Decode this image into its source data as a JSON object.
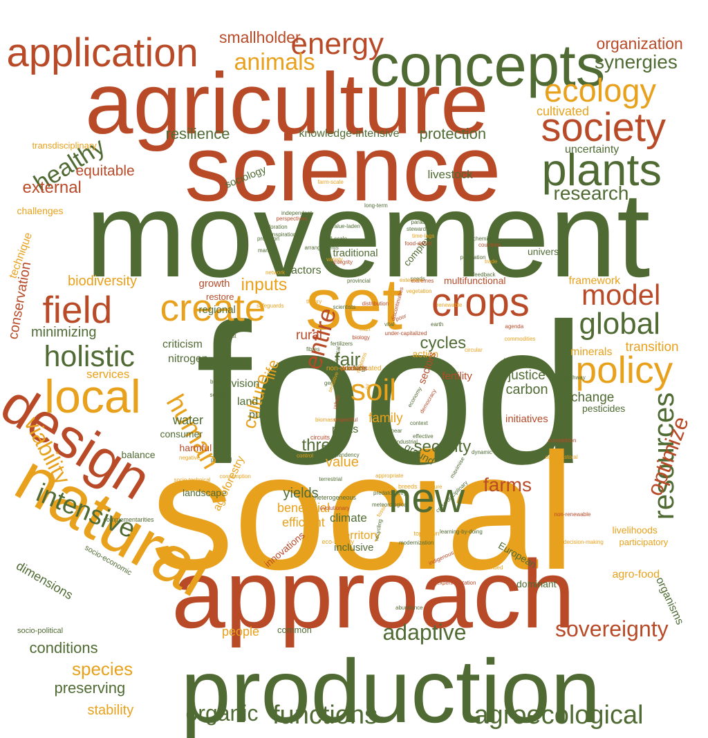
{
  "palette": {
    "olive": "#4f6a32",
    "rust": "#b84a28",
    "amber": "#e8a11c"
  },
  "words": [
    {
      "t": "food",
      "c": "olive"
    },
    {
      "t": "social",
      "c": "amber"
    },
    {
      "t": "movement",
      "c": "olive"
    },
    {
      "t": "science",
      "c": "rust"
    },
    {
      "t": "agriculture",
      "c": "rust"
    },
    {
      "t": "approach",
      "c": "rust"
    },
    {
      "t": "production",
      "c": "olive"
    },
    {
      "t": "concepts",
      "c": "olive"
    },
    {
      "t": "natural",
      "c": "amber"
    },
    {
      "t": "set",
      "c": "amber"
    },
    {
      "t": "design",
      "c": "rust"
    },
    {
      "t": "plants",
      "c": "olive"
    },
    {
      "t": "society",
      "c": "rust"
    },
    {
      "t": "local",
      "c": "amber"
    },
    {
      "t": "new",
      "c": "olive"
    },
    {
      "t": "application",
      "c": "rust"
    },
    {
      "t": "crops",
      "c": "rust"
    },
    {
      "t": "field",
      "c": "rust"
    },
    {
      "t": "create",
      "c": "amber"
    },
    {
      "t": "policy",
      "c": "amber"
    },
    {
      "t": "ecology",
      "c": "amber"
    },
    {
      "t": "energy",
      "c": "rust"
    },
    {
      "t": "soil",
      "c": "amber"
    },
    {
      "t": "global",
      "c": "olive"
    },
    {
      "t": "holistic",
      "c": "olive"
    },
    {
      "t": "model",
      "c": "rust"
    },
    {
      "t": "resources",
      "c": "olive"
    },
    {
      "t": "human",
      "c": "amber"
    },
    {
      "t": "intensive",
      "c": "olive"
    },
    {
      "t": "functions",
      "c": "olive"
    },
    {
      "t": "agroecological",
      "c": "olive"
    },
    {
      "t": "sovereignty",
      "c": "rust"
    },
    {
      "t": "adaptive",
      "c": "olive"
    },
    {
      "t": "organic",
      "c": "olive"
    },
    {
      "t": "optimize",
      "c": "rust"
    },
    {
      "t": "viability",
      "c": "amber"
    },
    {
      "t": "healthy",
      "c": "olive"
    },
    {
      "t": "animals",
      "c": "amber"
    },
    {
      "t": "synergies",
      "c": "olive"
    },
    {
      "t": "smallholder",
      "c": "rust"
    },
    {
      "t": "organization",
      "c": "rust"
    },
    {
      "t": "resilience",
      "c": "olive"
    },
    {
      "t": "protection",
      "c": "olive"
    },
    {
      "t": "knowledge-intensive",
      "c": "olive"
    },
    {
      "t": "cultivated",
      "c": "amber"
    },
    {
      "t": "external",
      "c": "rust"
    },
    {
      "t": "equitable",
      "c": "rust"
    },
    {
      "t": "research",
      "c": "olive"
    },
    {
      "t": "uncertainty",
      "c": "olive"
    },
    {
      "t": "livestock",
      "c": "olive"
    },
    {
      "t": "sociology",
      "c": "olive"
    },
    {
      "t": "transdisciplinary",
      "c": "amber"
    },
    {
      "t": "challenges",
      "c": "amber"
    },
    {
      "t": "technique",
      "c": "amber"
    },
    {
      "t": "conservation",
      "c": "rust"
    },
    {
      "t": "biodiversity",
      "c": "amber"
    },
    {
      "t": "minimizing",
      "c": "olive"
    },
    {
      "t": "inputs",
      "c": "amber"
    },
    {
      "t": "entire",
      "c": "rust"
    },
    {
      "t": "cycles",
      "c": "olive"
    },
    {
      "t": "fair",
      "c": "olive"
    },
    {
      "t": "culture",
      "c": "amber"
    },
    {
      "t": "life",
      "c": "amber"
    },
    {
      "t": "rural",
      "c": "rust"
    },
    {
      "t": "framework",
      "c": "amber"
    },
    {
      "t": "multifunctional",
      "c": "rust"
    },
    {
      "t": "transition",
      "c": "amber"
    },
    {
      "t": "minerals",
      "c": "amber"
    },
    {
      "t": "nutrients",
      "c": "olive"
    },
    {
      "t": "justice",
      "c": "olive"
    },
    {
      "t": "carbon",
      "c": "olive"
    },
    {
      "t": "change",
      "c": "olive"
    },
    {
      "t": "pesticides",
      "c": "olive"
    },
    {
      "t": "security",
      "c": "olive"
    },
    {
      "t": "value",
      "c": "amber"
    },
    {
      "t": "three",
      "c": "olive"
    },
    {
      "t": "water",
      "c": "olive"
    },
    {
      "t": "consumer",
      "c": "olive"
    },
    {
      "t": "harmful",
      "c": "rust"
    },
    {
      "t": "balance",
      "c": "olive"
    },
    {
      "t": "services",
      "c": "amber"
    },
    {
      "t": "family",
      "c": "amber"
    },
    {
      "t": "pests",
      "c": "olive"
    },
    {
      "t": "public",
      "c": "olive"
    },
    {
      "t": "land",
      "c": "olive"
    },
    {
      "t": "vision",
      "c": "olive"
    },
    {
      "t": "nitrogen",
      "c": "olive"
    },
    {
      "t": "criticism",
      "c": "olive"
    },
    {
      "t": "regional",
      "c": "olive"
    },
    {
      "t": "growth",
      "c": "rust"
    },
    {
      "t": "restore",
      "c": "rust"
    },
    {
      "t": "actors",
      "c": "olive"
    },
    {
      "t": "traditional",
      "c": "olive"
    },
    {
      "t": "universal",
      "c": "olive"
    },
    {
      "t": "complex",
      "c": "olive"
    },
    {
      "t": "fertility",
      "c": "rust"
    },
    {
      "t": "action",
      "c": "amber"
    },
    {
      "t": "sectors",
      "c": "rust"
    },
    {
      "t": "initiatives",
      "c": "rust"
    },
    {
      "t": "farms",
      "c": "rust"
    },
    {
      "t": "yields",
      "c": "olive"
    },
    {
      "t": "beneficial",
      "c": "amber"
    },
    {
      "t": "efficient",
      "c": "amber"
    },
    {
      "t": "climate",
      "c": "olive"
    },
    {
      "t": "territory",
      "c": "amber"
    },
    {
      "t": "inclusive",
      "c": "olive"
    },
    {
      "t": "innovations",
      "c": "rust"
    },
    {
      "t": "landscape",
      "c": "olive"
    },
    {
      "t": "agroforestry",
      "c": "amber"
    },
    {
      "t": "ground",
      "c": "olive"
    },
    {
      "t": "European",
      "c": "olive"
    },
    {
      "t": "dominant",
      "c": "olive"
    },
    {
      "t": "common",
      "c": "olive"
    },
    {
      "t": "people",
      "c": "amber"
    },
    {
      "t": "species",
      "c": "amber"
    },
    {
      "t": "conditions",
      "c": "olive"
    },
    {
      "t": "preserving",
      "c": "olive"
    },
    {
      "t": "stability",
      "c": "amber"
    },
    {
      "t": "socio-political",
      "c": "olive"
    },
    {
      "t": "dimensions",
      "c": "olive"
    },
    {
      "t": "socio-economic",
      "c": "olive"
    },
    {
      "t": "organisms",
      "c": "olive"
    },
    {
      "t": "participatory",
      "c": "amber"
    },
    {
      "t": "agro-food",
      "c": "amber"
    },
    {
      "t": "livelihoods",
      "c": "amber"
    },
    {
      "t": "complementarities",
      "c": "olive"
    },
    {
      "t": "experimentation",
      "c": "rust"
    },
    {
      "t": "abundance",
      "c": "olive"
    },
    {
      "t": "decision-making",
      "c": "amber"
    },
    {
      "t": "non-renewable",
      "c": "rust"
    },
    {
      "t": "indigenous",
      "c": "rust"
    },
    {
      "t": "learning-by-doing",
      "c": "olive"
    },
    {
      "t": "top-down",
      "c": "amber"
    },
    {
      "t": "modernization",
      "c": "olive"
    },
    {
      "t": "like-minded",
      "c": "amber"
    },
    {
      "t": "eco-friendly",
      "c": "amber"
    },
    {
      "t": "meteorological",
      "c": "olive"
    },
    {
      "t": "predator/prey",
      "c": "olive"
    },
    {
      "t": "fossil",
      "c": "amber"
    },
    {
      "t": "recycling",
      "c": "olive"
    },
    {
      "t": "heterogeneous",
      "c": "olive"
    },
    {
      "t": "terrestrial",
      "c": "olive"
    },
    {
      "t": "evolutionary",
      "c": "rust"
    },
    {
      "t": "appropriate",
      "c": "amber"
    },
    {
      "t": "breeds",
      "c": "amber"
    },
    {
      "t": "future",
      "c": "amber"
    },
    {
      "t": "maximise",
      "c": "olive"
    },
    {
      "t": "cross-disciplinary",
      "c": "olive"
    },
    {
      "t": "dynamic",
      "c": "olive"
    },
    {
      "t": "dependency",
      "c": "olive"
    },
    {
      "t": "control",
      "c": "amber"
    },
    {
      "t": "potential",
      "c": "olive"
    },
    {
      "t": "negative",
      "c": "amber"
    },
    {
      "t": "socio-technical",
      "c": "amber"
    },
    {
      "t": "consumption",
      "c": "amber"
    },
    {
      "t": "respectful",
      "c": "rust"
    },
    {
      "t": "industrial",
      "c": "olive"
    },
    {
      "t": "non-linear",
      "c": "olive"
    },
    {
      "t": "context",
      "c": "olive"
    },
    {
      "t": "effective",
      "c": "olive"
    },
    {
      "t": "agro-pastoral",
      "c": "amber"
    },
    {
      "t": "competition",
      "c": "rust"
    },
    {
      "t": "biomass",
      "c": "amber"
    },
    {
      "t": "urban",
      "c": "rust"
    },
    {
      "t": "circuits",
      "c": "rust"
    },
    {
      "t": "bottom",
      "c": "olive"
    },
    {
      "t": "scales",
      "c": "olive"
    },
    {
      "t": "genetic",
      "c": "olive"
    },
    {
      "t": "fibres",
      "c": "olive"
    },
    {
      "t": "insects",
      "c": "olive"
    },
    {
      "t": "biotic",
      "c": "olive"
    },
    {
      "t": "quality",
      "c": "olive"
    },
    {
      "t": "economy",
      "c": "olive"
    },
    {
      "t": "democracy",
      "c": "rust"
    },
    {
      "t": "sensitive",
      "c": "amber"
    },
    {
      "t": "circular",
      "c": "amber"
    },
    {
      "t": "pathway",
      "c": "olive"
    },
    {
      "t": "commodities",
      "c": "amber"
    },
    {
      "t": "under-capitalized",
      "c": "rust"
    },
    {
      "t": "earth",
      "c": "olive"
    },
    {
      "t": "agenda",
      "c": "rust"
    },
    {
      "t": "renewable",
      "c": "amber"
    },
    {
      "t": "fertilizers",
      "c": "olive"
    },
    {
      "t": "eat",
      "c": "olive"
    },
    {
      "t": "biophysical",
      "c": "olive"
    },
    {
      "t": "rotations",
      "c": "amber"
    },
    {
      "t": "oil",
      "c": "amber"
    },
    {
      "t": "man",
      "c": "amber"
    },
    {
      "t": "biology",
      "c": "rust"
    },
    {
      "t": "vital",
      "c": "olive"
    },
    {
      "t": "poor",
      "c": "rust"
    },
    {
      "t": "discontinuities",
      "c": "rust"
    },
    {
      "t": "scientists",
      "c": "olive"
    },
    {
      "t": "theory",
      "c": "amber"
    },
    {
      "t": "safeguards",
      "c": "amber"
    },
    {
      "t": "distribution",
      "c": "rust"
    },
    {
      "t": "seeds",
      "c": "olive"
    },
    {
      "t": "variety",
      "c": "amber"
    },
    {
      "t": "provincial",
      "c": "olive"
    },
    {
      "t": "arrangements",
      "c": "olive"
    },
    {
      "t": "markets",
      "c": "olive"
    },
    {
      "t": "small-scale",
      "c": "olive"
    },
    {
      "t": "integrity",
      "c": "rust"
    },
    {
      "t": "network",
      "c": "amber"
    },
    {
      "t": "provision",
      "c": "olive"
    },
    {
      "t": "inspiration",
      "c": "olive"
    },
    {
      "t": "exploration",
      "c": "olive"
    },
    {
      "t": "perspectives",
      "c": "rust"
    },
    {
      "t": "independent",
      "c": "olive"
    },
    {
      "t": "value-laden",
      "c": "olive"
    },
    {
      "t": "mimicking",
      "c": "olive"
    },
    {
      "t": "paradigm",
      "c": "olive"
    },
    {
      "t": "stewards",
      "c": "olive"
    },
    {
      "t": "time-lags",
      "c": "amber"
    },
    {
      "t": "food-deficit",
      "c": "rust"
    },
    {
      "t": "chemical",
      "c": "olive"
    },
    {
      "t": "countries",
      "c": "rust"
    },
    {
      "t": "population",
      "c": "olive"
    },
    {
      "t": "trade",
      "c": "amber"
    },
    {
      "t": "feedback",
      "c": "olive"
    },
    {
      "t": "extremes",
      "c": "rust"
    },
    {
      "t": "extensive",
      "c": "amber"
    },
    {
      "t": "vegetation",
      "c": "amber"
    },
    {
      "t": "farm-scale",
      "c": "amber"
    },
    {
      "t": "long-term",
      "c": "olive"
    },
    {
      "t": "identity",
      "c": "olive"
    },
    {
      "t": "auxiliary",
      "c": "olive"
    },
    {
      "t": "non-domesticated",
      "c": "amber"
    },
    {
      "t": "products",
      "c": "rust"
    }
  ]
}
